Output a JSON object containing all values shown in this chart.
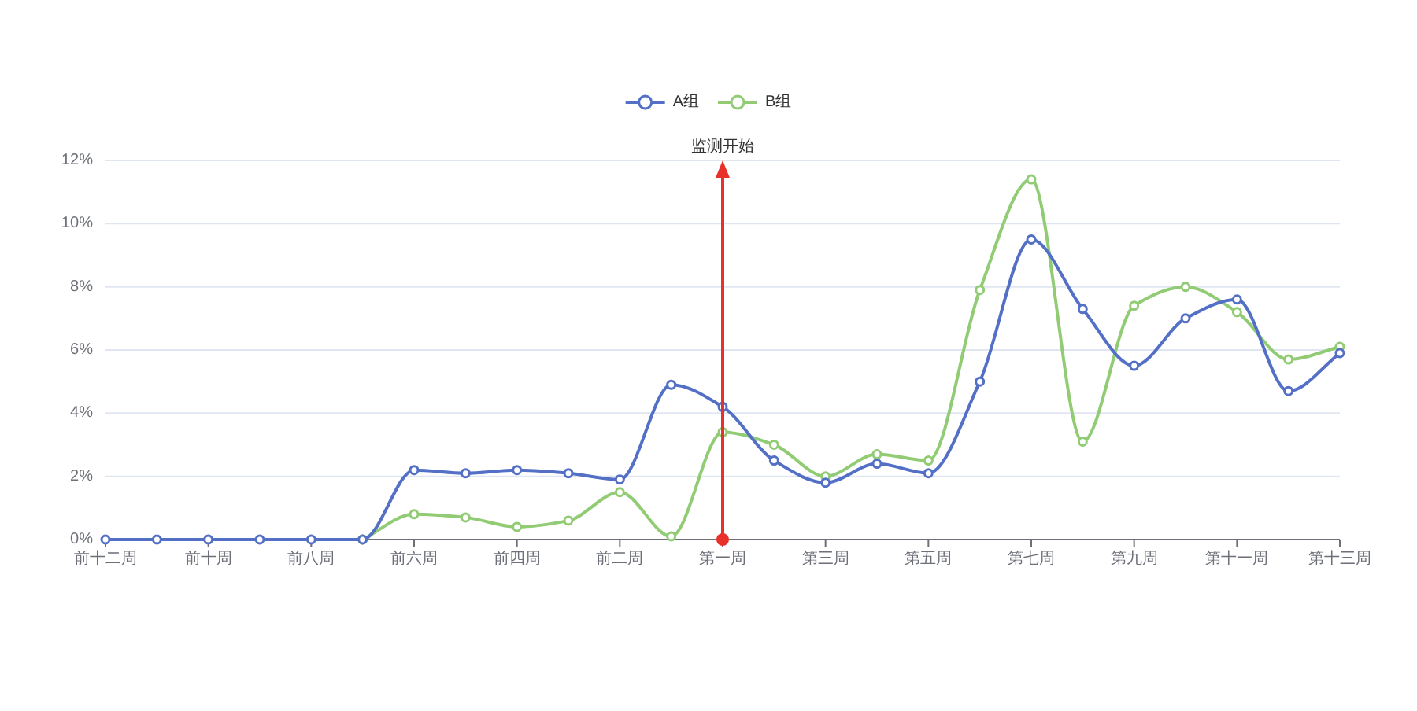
{
  "chart_data": {
    "type": "line",
    "legend": "top",
    "categories": [
      "前十二周",
      null,
      "前十周",
      null,
      "前八周",
      null,
      "前六周",
      null,
      "前四周",
      null,
      "前二周",
      null,
      "第一周",
      null,
      "第三周",
      null,
      "第五周",
      null,
      "第七周",
      null,
      "第九周",
      null,
      "第十一周",
      null,
      "第十三周"
    ],
    "series": [
      {
        "name": "A组",
        "color": "#5470c6",
        "values": [
          0,
          0,
          0,
          0,
          0,
          0,
          2.2,
          2.1,
          2.2,
          2.1,
          1.9,
          4.9,
          4.2,
          2.5,
          1.8,
          2.4,
          2.1,
          5.0,
          9.5,
          7.3,
          5.5,
          7.0,
          7.6,
          4.7,
          5.9
        ]
      },
      {
        "name": "B组",
        "color": "#91cc75",
        "values": [
          null,
          null,
          null,
          null,
          null,
          0,
          0.8,
          0.7,
          0.4,
          0.6,
          1.5,
          0.1,
          3.4,
          3.0,
          2.0,
          2.7,
          2.5,
          7.9,
          11.4,
          3.1,
          7.4,
          8.0,
          7.2,
          5.7,
          6.1
        ]
      }
    ],
    "ylim": [
      0,
      12
    ],
    "yticks": [
      {
        "value": 0,
        "label": "0%"
      },
      {
        "value": 2,
        "label": "2%"
      },
      {
        "value": 4,
        "label": "4%"
      },
      {
        "value": 6,
        "label": "6%"
      },
      {
        "value": 8,
        "label": "8%"
      },
      {
        "value": 10,
        "label": "10%"
      },
      {
        "value": 12,
        "label": "12%"
      }
    ],
    "grid": "y",
    "marker": "circle",
    "line_style": "solid",
    "ref_lines": [
      {
        "axis": "x",
        "value": "第一周",
        "label": "监测开始",
        "color": "#e8312a",
        "line_style": "solid"
      }
    ]
  }
}
